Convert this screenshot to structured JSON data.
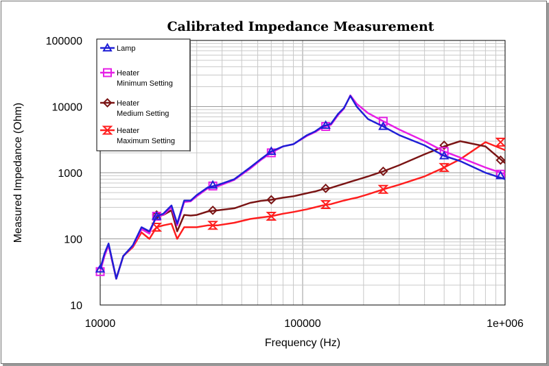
{
  "chart_data": {
    "type": "line",
    "title": "Calibrated Impedance Measurement",
    "xlabel": "Frequency (Hz)",
    "ylabel": "Measured Impedance (Ohm)",
    "x_scale": "log",
    "y_scale": "log",
    "xlim": [
      10000,
      1000000
    ],
    "ylim": [
      10,
      100000
    ],
    "x_tick_labels": [
      "10000",
      "100000",
      "1e+006"
    ],
    "y_tick_labels": [
      "10",
      "100",
      "1000",
      "10000",
      "100000"
    ],
    "grid": true,
    "legend_position": "top-left",
    "series": [
      {
        "name": "Lamp",
        "label_lines": [
          "Lamp"
        ],
        "color": "#1f1fd6",
        "marker": "triangle",
        "x": [
          10000,
          10500,
          11000,
          12000,
          13000,
          14500,
          16000,
          17500,
          19000,
          20500,
          22500,
          24000,
          26000,
          28000,
          30000,
          34000,
          38000,
          46000,
          55000,
          62000,
          70000,
          80000,
          90000,
          105000,
          115000,
          125000,
          138000,
          150000,
          160000,
          172000,
          185000,
          210000,
          250000,
          300000,
          400000,
          500000,
          600000,
          800000,
          1000000
        ],
        "y": [
          35,
          60,
          85,
          25,
          55,
          80,
          150,
          130,
          220,
          240,
          320,
          170,
          380,
          380,
          460,
          600,
          650,
          800,
          1200,
          1600,
          2100,
          2500,
          2700,
          3700,
          4200,
          5000,
          5500,
          7800,
          9500,
          14500,
          10000,
          6500,
          5000,
          3700,
          2600,
          1800,
          1500,
          1000,
          800
        ],
        "marker_x": [
          10000,
          19000,
          36000,
          70000,
          130000,
          250000,
          500000,
          950000
        ],
        "marker_y": [
          35,
          220,
          650,
          2100,
          5200,
          5000,
          1800,
          900
        ]
      },
      {
        "name": "Heater Minimum Setting",
        "label_lines": [
          "Heater",
          "Minimum Setting"
        ],
        "color": "#e61ee6",
        "marker": "square",
        "x": [
          10000,
          10500,
          11000,
          12000,
          13000,
          14500,
          16000,
          17500,
          19000,
          20500,
          22500,
          24000,
          26000,
          28000,
          30000,
          34000,
          38000,
          46000,
          55000,
          62000,
          70000,
          80000,
          90000,
          105000,
          115000,
          125000,
          138000,
          150000,
          160000,
          172000,
          185000,
          210000,
          250000,
          300000,
          400000,
          500000,
          600000,
          800000,
          1000000
        ],
        "y": [
          32,
          55,
          80,
          25,
          55,
          78,
          140,
          120,
          230,
          230,
          300,
          160,
          360,
          370,
          440,
          580,
          620,
          780,
          1150,
          1550,
          2000,
          2500,
          2700,
          3600,
          4100,
          4800,
          5300,
          7500,
          9300,
          14800,
          11000,
          8000,
          6000,
          4500,
          3000,
          2100,
          1700,
          1200,
          950
        ],
        "marker_x": [
          10000,
          19000,
          36000,
          70000,
          130000,
          250000,
          500000,
          950000
        ],
        "marker_y": [
          32,
          220,
          630,
          2000,
          5000,
          6000,
          2100,
          950
        ]
      },
      {
        "name": "Heater Medium Setting",
        "label_lines": [
          "Heater",
          "Medium Setting"
        ],
        "color": "#7a1414",
        "marker": "diamond",
        "x": [
          10000,
          10500,
          11000,
          12000,
          13000,
          14500,
          16000,
          17500,
          19000,
          20500,
          22500,
          24000,
          26000,
          28000,
          30000,
          34000,
          38000,
          46000,
          55000,
          62000,
          70000,
          80000,
          90000,
          105000,
          115000,
          125000,
          138000,
          150000,
          160000,
          172000,
          185000,
          210000,
          250000,
          300000,
          400000,
          500000,
          600000,
          800000,
          1000000
        ],
        "y": [
          35,
          58,
          82,
          25,
          55,
          78,
          140,
          125,
          220,
          230,
          270,
          130,
          230,
          225,
          230,
          260,
          270,
          290,
          350,
          375,
          390,
          420,
          440,
          490,
          520,
          560,
          590,
          640,
          680,
          730,
          780,
          880,
          1050,
          1300,
          1900,
          2500,
          3000,
          2500,
          1400
        ],
        "marker_x": [
          19000,
          36000,
          70000,
          130000,
          250000,
          500000,
          950000
        ],
        "marker_y": [
          230,
          270,
          390,
          580,
          1050,
          2600,
          1550
        ]
      },
      {
        "name": "Heater Maximum Setting",
        "label_lines": [
          "Heater",
          "Maximum Setting"
        ],
        "color": "#ff1e1e",
        "marker": "hourglass",
        "x": [
          10000,
          10500,
          11000,
          12000,
          13000,
          14500,
          16000,
          17500,
          19000,
          20500,
          22500,
          24000,
          26000,
          28000,
          30000,
          34000,
          38000,
          46000,
          55000,
          62000,
          70000,
          80000,
          90000,
          105000,
          115000,
          125000,
          138000,
          150000,
          160000,
          172000,
          185000,
          210000,
          250000,
          300000,
          400000,
          500000,
          600000,
          800000,
          1000000
        ],
        "y": [
          35,
          57,
          80,
          25,
          55,
          75,
          125,
          100,
          150,
          160,
          170,
          100,
          150,
          150,
          150,
          160,
          160,
          175,
          200,
          210,
          220,
          240,
          255,
          280,
          300,
          320,
          335,
          360,
          380,
          400,
          420,
          470,
          560,
          660,
          880,
          1200,
          1600,
          2900,
          2200
        ],
        "marker_x": [
          19000,
          36000,
          70000,
          130000,
          250000,
          500000,
          950000
        ],
        "marker_y": [
          150,
          160,
          220,
          330,
          560,
          1200,
          2900
        ]
      }
    ]
  }
}
